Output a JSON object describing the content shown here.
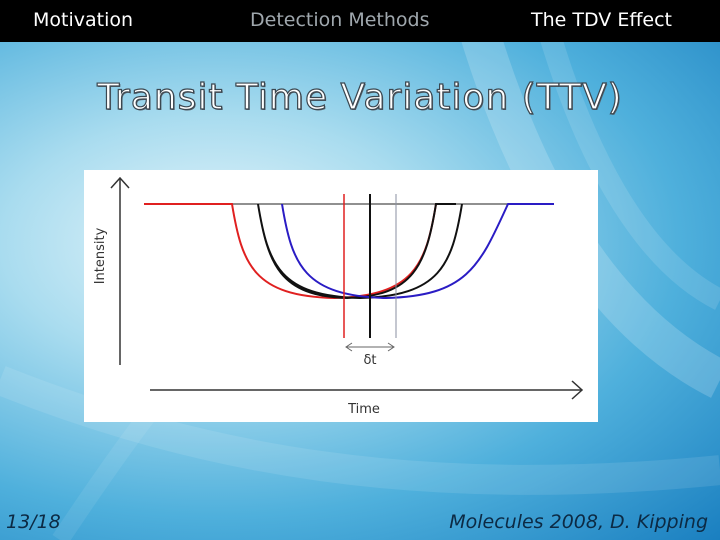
{
  "nav": {
    "items": [
      {
        "label": "Motivation",
        "active": false
      },
      {
        "label": "Detection Methods",
        "active": true
      },
      {
        "label": "The TDV Effect",
        "active": false
      }
    ]
  },
  "slide": {
    "title": "Transit Time Variation (TTV)",
    "page_number": "13/18",
    "citation": "Molecules 2008, D. Kipping"
  },
  "figure": {
    "y_axis_label": "Intensity",
    "x_axis_label": "Time",
    "shift_label": "δt",
    "colors": {
      "early_transit": "#e02020",
      "reference_transit": "#111111",
      "late_transit": "#2a1cc4",
      "baseline": "#222222"
    }
  }
}
